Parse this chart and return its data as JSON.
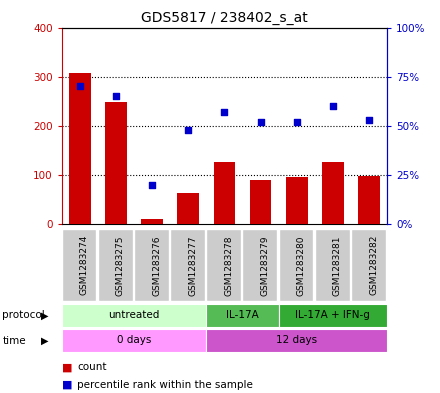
{
  "title": "GDS5817 / 238402_s_at",
  "samples": [
    "GSM1283274",
    "GSM1283275",
    "GSM1283276",
    "GSM1283277",
    "GSM1283278",
    "GSM1283279",
    "GSM1283280",
    "GSM1283281",
    "GSM1283282"
  ],
  "counts": [
    307,
    248,
    10,
    63,
    127,
    90,
    95,
    127,
    98
  ],
  "percentiles": [
    70,
    65,
    20,
    48,
    57,
    52,
    52,
    60,
    53
  ],
  "ylim_left": [
    0,
    400
  ],
  "ylim_right": [
    0,
    100
  ],
  "yticks_left": [
    0,
    100,
    200,
    300,
    400
  ],
  "yticks_right": [
    0,
    25,
    50,
    75,
    100
  ],
  "ytick_labels_left": [
    "0",
    "100",
    "200",
    "300",
    "400"
  ],
  "ytick_labels_right": [
    "0%",
    "25%",
    "50%",
    "75%",
    "100%"
  ],
  "bar_color": "#cc0000",
  "dot_color": "#0000cc",
  "protocol_items": [
    {
      "span": [
        0,
        3
      ],
      "label": "untreated",
      "color": "#ccffcc"
    },
    {
      "span": [
        4,
        5
      ],
      "label": "IL-17A",
      "color": "#55bb55"
    },
    {
      "span": [
        6,
        8
      ],
      "label": "IL-17A + IFN-g",
      "color": "#33aa33"
    }
  ],
  "time_items": [
    {
      "span": [
        0,
        3
      ],
      "label": "0 days",
      "color": "#ff99ff"
    },
    {
      "span": [
        4,
        8
      ],
      "label": "12 days",
      "color": "#cc55cc"
    }
  ],
  "legend_count_label": "count",
  "legend_pct_label": "percentile rank within the sample",
  "left_axis_color": "#cc0000",
  "right_axis_color": "#0000cc",
  "grid_color": "#000000",
  "background_color": "#ffffff",
  "sample_box_color": "#cccccc",
  "gridline_yticks": [
    100,
    200,
    300
  ]
}
